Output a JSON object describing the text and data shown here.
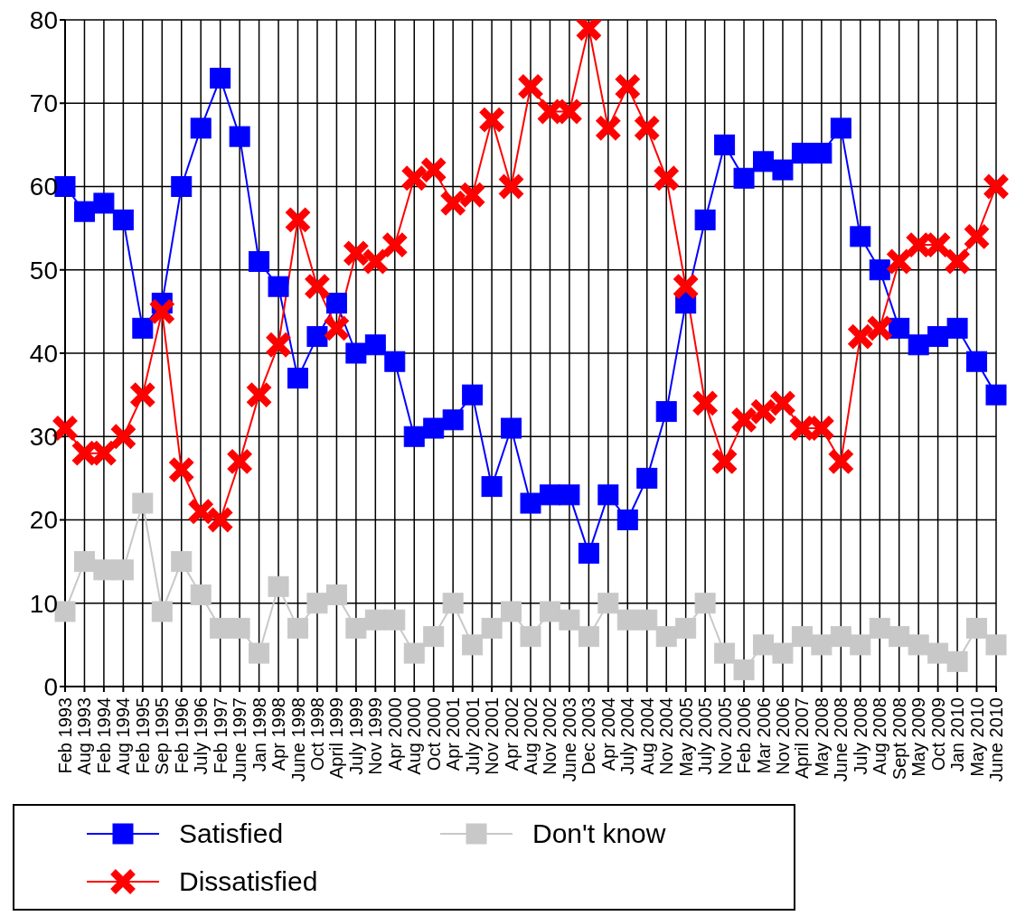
{
  "chart_data": {
    "type": "line",
    "categories": [
      "Feb 1993",
      "Aug 1993",
      "Feb 1994",
      "Aug 1994",
      "Feb 1995",
      "Sep 1995",
      "Feb 1996",
      "July 1996",
      "Feb 1997",
      "June 1997",
      "Jan 1998",
      "Apr 1998",
      "June 1998",
      "Oct 1998",
      "April 1999",
      "July 1999",
      "Nov 1999",
      "Apr 2000",
      "Aug 2000",
      "Oct 2000",
      "Apr 2001",
      "July 2001",
      "Nov 2001",
      "Apr 2002",
      "Aug 2002",
      "Nov 2002",
      "June 2003",
      "Dec 2003",
      "Apr 2004",
      "July 2004",
      "Aug 2004",
      "Nov 2004",
      "May 2005",
      "July 2005",
      "Nov 2005",
      "Feb 2006",
      "Mar 2006",
      "Nov 2006",
      "April 2007",
      "May 2008",
      "June 2008",
      "July 2008",
      "Aug 2008",
      "Sept 2008",
      "May 2009",
      "Oct 2009",
      "Jan 2010",
      "May 2010",
      "June 2010"
    ],
    "series": [
      {
        "name": "Satisfied",
        "color": "#0000ff",
        "marker": "square",
        "values": [
          60,
          57,
          58,
          56,
          43,
          46,
          60,
          67,
          73,
          66,
          51,
          48,
          37,
          42,
          46,
          40,
          41,
          39,
          30,
          31,
          32,
          35,
          24,
          31,
          22,
          23,
          23,
          16,
          23,
          20,
          25,
          33,
          46,
          56,
          65,
          61,
          63,
          62,
          64,
          64,
          67,
          54,
          50,
          43,
          41,
          42,
          43,
          39,
          35
        ]
      },
      {
        "name": "Dissatisfied",
        "color": "#ff0000",
        "marker": "cross",
        "values": [
          31,
          28,
          28,
          30,
          35,
          45,
          26,
          21,
          20,
          27,
          35,
          41,
          56,
          48,
          43,
          52,
          51,
          53,
          61,
          62,
          58,
          59,
          68,
          60,
          72,
          69,
          69,
          79,
          67,
          72,
          67,
          61,
          48,
          34,
          27,
          32,
          33,
          34,
          31,
          31,
          27,
          42,
          43,
          51,
          53,
          53,
          51,
          54,
          60
        ]
      },
      {
        "name": "Don't know",
        "color": "#c8c8c8",
        "marker": "square",
        "values": [
          9,
          15,
          14,
          14,
          22,
          9,
          15,
          11,
          7,
          7,
          4,
          12,
          7,
          10,
          11,
          7,
          8,
          8,
          4,
          6,
          10,
          5,
          7,
          9,
          6,
          9,
          8,
          6,
          10,
          8,
          8,
          6,
          7,
          10,
          4,
          2,
          5,
          4,
          6,
          5,
          6,
          5,
          7,
          6,
          5,
          4,
          3,
          7,
          5
        ]
      }
    ],
    "ylim": [
      0,
      80
    ],
    "yticks": [
      0,
      10,
      20,
      30,
      40,
      50,
      60,
      70,
      80
    ],
    "grid": true,
    "legend": "bottom left",
    "line_style": "solid"
  }
}
